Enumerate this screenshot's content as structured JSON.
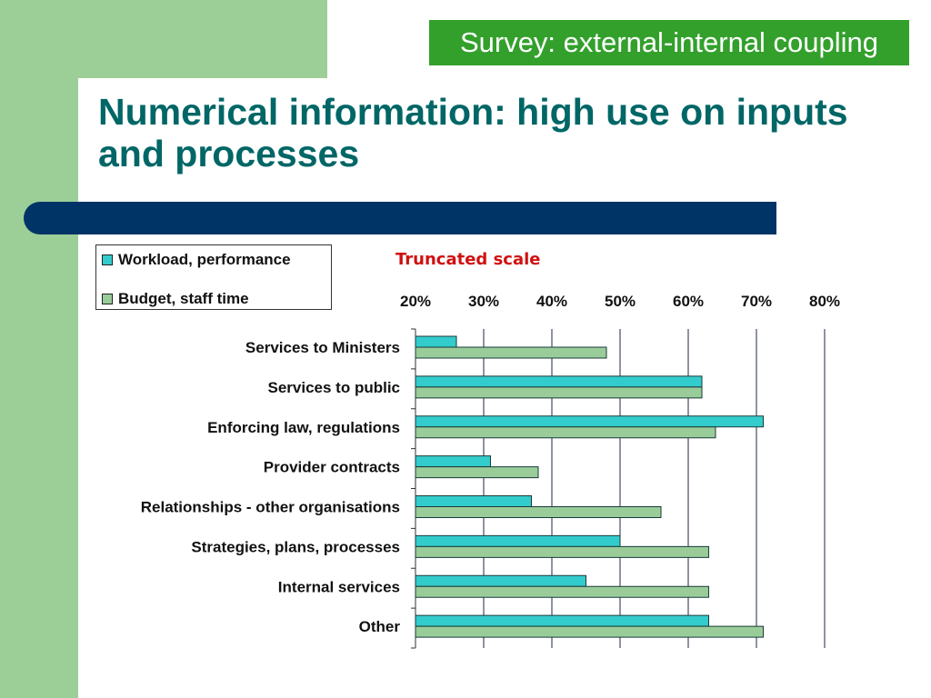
{
  "header": {
    "tag": "Survey: external-internal coupling",
    "title": "Numerical information: high use on inputs and processes"
  },
  "note": "Truncated scale",
  "colors": {
    "series1": "#33cccc",
    "series2": "#99cc99",
    "title": "#006666",
    "rule": "#003366",
    "tag_bg": "#33a02c",
    "note": "#d01010"
  },
  "chart_data": {
    "type": "bar",
    "orientation": "horizontal",
    "categories": [
      "Services to Ministers",
      "Services to public",
      "Enforcing law, regulations",
      "Provider contracts",
      "Relationships - other organisations",
      "Strategies, plans, processes",
      "Internal services",
      "Other"
    ],
    "series": [
      {
        "name": "Workload, performance",
        "values": [
          26,
          62,
          71,
          31,
          37,
          50,
          45,
          63
        ]
      },
      {
        "name": "Budget, staff time",
        "values": [
          48,
          62,
          64,
          38,
          56,
          63,
          63,
          71
        ]
      }
    ],
    "xlim": [
      20,
      80
    ],
    "xticks": [
      "20%",
      "30%",
      "40%",
      "50%",
      "60%",
      "70%",
      "80%"
    ],
    "xaxis_position": "top",
    "grid": "vertical",
    "legend": "top-left"
  }
}
